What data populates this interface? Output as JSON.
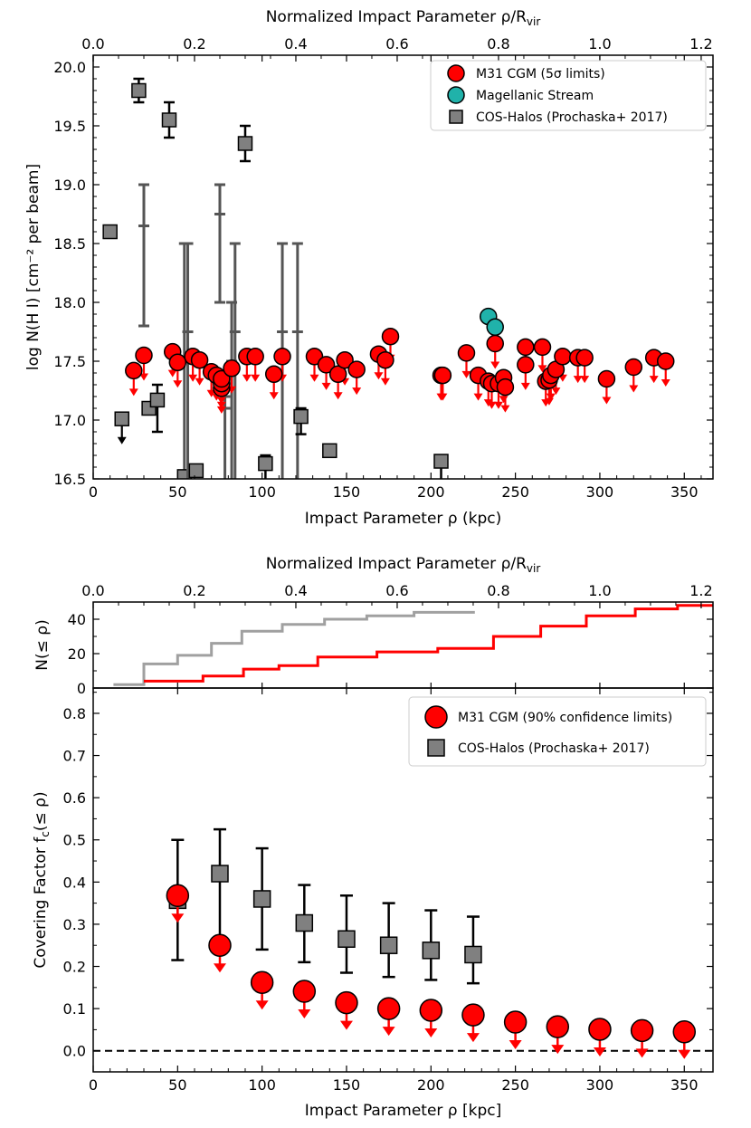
{
  "colors": {
    "m31": "#ff0000",
    "cos": "#808080",
    "ms": "#20b2aa",
    "err": "#000000",
    "err_grey": "#555555",
    "cum_grey": "#a0a0a0",
    "cum_red": "#ff0000"
  },
  "chart_data": [
    {
      "type": "scatter",
      "xlabel": "Impact Parameter ρ (kpc)",
      "ylabel": "log N(H I) [cm⁻² per beam]",
      "top_xlabel": "Normalized Impact Parameter ρ/R",
      "top_xlabel_sub": "vir",
      "xlim": [
        0,
        367
      ],
      "ylim": [
        16.5,
        20.1
      ],
      "x_ticks": [
        "0",
        "50",
        "100",
        "150",
        "200",
        "250",
        "300",
        "350"
      ],
      "y_ticks": [
        "16.5",
        "17.0",
        "17.5",
        "18.0",
        "18.5",
        "19.0",
        "19.5",
        "20.0"
      ],
      "top_ticks": [
        "0.0",
        "0.2",
        "0.4",
        "0.6",
        "0.8",
        "1.0",
        "1.2"
      ],
      "top_scale_kpc_per_unit": 300,
      "legend": [
        "M31 CGM (5σ limits)",
        "Magellanic Stream",
        "COS-Halos (Prochaska+ 2017)"
      ],
      "legend_placement": "upper-right",
      "m31_upper_limits": [
        [
          24,
          17.42
        ],
        [
          30,
          17.55
        ],
        [
          47,
          17.58
        ],
        [
          50,
          17.49
        ],
        [
          59,
          17.54
        ],
        [
          63,
          17.51
        ],
        [
          70,
          17.41
        ],
        [
          73,
          17.38
        ],
        [
          76,
          17.27
        ],
        [
          76,
          17.31
        ],
        [
          76,
          17.35
        ],
        [
          82,
          17.44
        ],
        [
          91,
          17.54
        ],
        [
          96,
          17.54
        ],
        [
          107,
          17.39
        ],
        [
          112,
          17.54
        ],
        [
          131,
          17.54
        ],
        [
          138,
          17.47
        ],
        [
          145,
          17.39
        ],
        [
          149,
          17.51
        ],
        [
          156,
          17.43
        ],
        [
          169,
          17.56
        ],
        [
          173,
          17.51
        ],
        [
          176,
          17.71
        ],
        [
          206,
          17.38
        ],
        [
          207,
          17.38
        ],
        [
          221,
          17.57
        ],
        [
          228,
          17.38
        ],
        [
          234,
          17.33
        ],
        [
          236,
          17.31
        ],
        [
          238,
          17.65
        ],
        [
          240,
          17.31
        ],
        [
          243,
          17.36
        ],
        [
          244,
          17.28
        ],
        [
          256,
          17.62
        ],
        [
          256,
          17.47
        ],
        [
          266,
          17.62
        ],
        [
          268,
          17.33
        ],
        [
          270,
          17.34
        ],
        [
          271,
          17.38
        ],
        [
          274,
          17.43
        ],
        [
          278,
          17.54
        ],
        [
          287,
          17.53
        ],
        [
          291,
          17.53
        ],
        [
          304,
          17.35
        ],
        [
          320,
          17.45
        ],
        [
          332,
          17.53
        ],
        [
          339,
          17.5
        ]
      ],
      "magellanic_stream": [
        [
          234,
          17.88
        ],
        [
          238,
          17.79
        ]
      ],
      "cos_halos_points": [
        {
          "x": 10,
          "y": 18.6
        },
        {
          "x": 17,
          "y": 17.01,
          "upper": true
        },
        {
          "x": 33,
          "y": 17.1
        },
        {
          "x": 38,
          "y": 17.17,
          "lo": 16.9,
          "hi": 17.3
        },
        {
          "x": 27,
          "y": 19.8,
          "lo": 19.7,
          "hi": 19.9
        },
        {
          "x": 45,
          "y": 19.55,
          "lo": 19.4,
          "hi": 19.7
        },
        {
          "x": 30,
          "y": 18.5,
          "lo": 17.8,
          "hi": 19.0,
          "bar_only": true
        },
        {
          "x": 54,
          "y": 16.52,
          "lo": 16.5,
          "hi": 18.5
        },
        {
          "x": 56,
          "y": 16.5,
          "lo": 16.5,
          "hi": 18.5,
          "bar_only": true
        },
        {
          "x": 61,
          "y": 16.57
        },
        {
          "x": 75,
          "y": 18.5,
          "lo": 18.0,
          "hi": 19.0,
          "bar_only": true
        },
        {
          "x": 78,
          "y": 16.5,
          "lo": 16.5,
          "hi": 17.2,
          "bar_only": true
        },
        {
          "x": 82,
          "y": 16.5,
          "lo": 16.5,
          "hi": 18.0,
          "bar_only": true
        },
        {
          "x": 84,
          "y": 16.5,
          "lo": 16.5,
          "hi": 18.5,
          "bar_only": true
        },
        {
          "x": 90,
          "y": 19.35,
          "lo": 19.2,
          "hi": 19.5
        },
        {
          "x": 102,
          "y": 16.63,
          "lo": 16.5,
          "hi": 16.7
        },
        {
          "x": 112,
          "y": 16.5,
          "lo": 16.5,
          "hi": 18.5,
          "bar_only": true
        },
        {
          "x": 121,
          "y": 16.5,
          "lo": 16.5,
          "hi": 18.5,
          "bar_only": true
        },
        {
          "x": 123,
          "y": 17.03,
          "lo": 16.88,
          "hi": 17.1
        },
        {
          "x": 140,
          "y": 16.74
        },
        {
          "x": 206,
          "y": 16.65,
          "lo": 16.5,
          "hi": 16.7
        }
      ]
    },
    {
      "type": "line",
      "ylabel": "N(≤ ρ)",
      "top_xlabel": "Normalized Impact Parameter ρ/R",
      "top_xlabel_sub": "vir",
      "xlim": [
        0,
        367
      ],
      "ylim": [
        0,
        50
      ],
      "y_ticks": [
        "0",
        "20",
        "40"
      ],
      "top_ticks": [
        "0.0",
        "0.2",
        "0.4",
        "0.6",
        "0.8",
        "1.0",
        "1.2"
      ],
      "series": [
        {
          "color": "cos",
          "steps": [
            [
              12,
              2
            ],
            [
              30,
              2
            ],
            [
              30,
              14
            ],
            [
              50,
              14
            ],
            [
              50,
              19
            ],
            [
              70,
              19
            ],
            [
              70,
              26
            ],
            [
              88,
              26
            ],
            [
              88,
              33
            ],
            [
              112,
              33
            ],
            [
              112,
              37
            ],
            [
              137,
              37
            ],
            [
              137,
              40
            ],
            [
              162,
              40
            ],
            [
              162,
              42
            ],
            [
              190,
              42
            ],
            [
              190,
              44
            ],
            [
              226,
              44
            ]
          ]
        },
        {
          "color": "m31",
          "steps": [
            [
              30,
              4
            ],
            [
              65,
              4
            ],
            [
              65,
              7
            ],
            [
              89,
              7
            ],
            [
              89,
              11
            ],
            [
              110,
              11
            ],
            [
              110,
              13
            ],
            [
              133,
              13
            ],
            [
              133,
              18
            ],
            [
              168,
              18
            ],
            [
              168,
              21
            ],
            [
              204,
              21
            ],
            [
              204,
              23
            ],
            [
              237,
              23
            ],
            [
              237,
              30
            ],
            [
              265,
              30
            ],
            [
              265,
              36
            ],
            [
              292,
              36
            ],
            [
              292,
              42
            ],
            [
              321,
              42
            ],
            [
              321,
              46
            ],
            [
              346,
              46
            ],
            [
              346,
              48
            ],
            [
              367,
              48
            ]
          ]
        }
      ]
    },
    {
      "type": "scatter",
      "xlabel": "Impact Parameter ρ [kpc]",
      "ylabel": "Covering Factor f",
      "ylabel_sub": "c",
      "ylabel_tail": "(≤ ρ)",
      "xlim": [
        0,
        367
      ],
      "ylim": [
        -0.05,
        0.86
      ],
      "x_ticks": [
        "0",
        "50",
        "100",
        "150",
        "200",
        "250",
        "300",
        "350"
      ],
      "y_ticks": [
        "0.0",
        "0.1",
        "0.2",
        "0.3",
        "0.4",
        "0.5",
        "0.6",
        "0.7",
        "0.8"
      ],
      "legend": [
        "M31 CGM (90% confidence limits)",
        "COS-Halos (Prochaska+ 2017)"
      ],
      "legend_placement": "upper-right",
      "reference_line_y": 0.0,
      "m31_upper_limits": [
        [
          50,
          0.368
        ],
        [
          75,
          0.25
        ],
        [
          100,
          0.162
        ],
        [
          125,
          0.141
        ],
        [
          150,
          0.114
        ],
        [
          175,
          0.1
        ],
        [
          200,
          0.096
        ],
        [
          225,
          0.085
        ],
        [
          250,
          0.068
        ],
        [
          275,
          0.057
        ],
        [
          300,
          0.051
        ],
        [
          325,
          0.048
        ],
        [
          350,
          0.045
        ]
      ],
      "cos_halos": [
        {
          "x": 50,
          "y": 0.357,
          "lo": 0.215,
          "hi": 0.5
        },
        {
          "x": 75,
          "y": 0.42,
          "lo": 0.25,
          "hi": 0.525
        },
        {
          "x": 100,
          "y": 0.36,
          "lo": 0.24,
          "hi": 0.48
        },
        {
          "x": 125,
          "y": 0.303,
          "lo": 0.21,
          "hi": 0.393
        },
        {
          "x": 150,
          "y": 0.265,
          "lo": 0.185,
          "hi": 0.368
        },
        {
          "x": 175,
          "y": 0.25,
          "lo": 0.175,
          "hi": 0.35
        },
        {
          "x": 200,
          "y": 0.238,
          "lo": 0.168,
          "hi": 0.333
        },
        {
          "x": 225,
          "y": 0.228,
          "lo": 0.16,
          "hi": 0.318
        }
      ]
    }
  ]
}
